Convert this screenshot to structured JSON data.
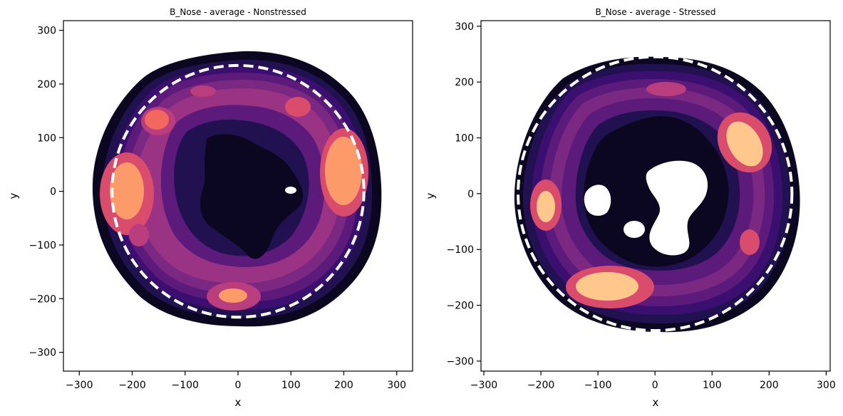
{
  "chart_data": [
    {
      "type": "heatmap",
      "subtype": "kde-contour",
      "title": "B_Nose - average - Nonstressed",
      "xlabel": "x",
      "ylabel": "y",
      "xlim": [
        -330,
        330
      ],
      "ylim": [
        -335,
        318
      ],
      "xticks": [
        -300,
        -200,
        -100,
        0,
        100,
        200,
        300
      ],
      "yticks": [
        -300,
        -200,
        -100,
        0,
        100,
        200,
        300
      ],
      "colormap": "magma",
      "reference_circle": {
        "cx": 0,
        "cy": 0,
        "r": 238,
        "style": "dashed",
        "color": "#ffffff"
      },
      "density_hotspots": [
        {
          "x": -205,
          "y": 0,
          "level": "high"
        },
        {
          "x": 200,
          "y": 30,
          "level": "high"
        },
        {
          "x": -145,
          "y": 130,
          "level": "medium-high"
        },
        {
          "x": 0,
          "y": -197,
          "level": "medium-high"
        },
        {
          "x": 100,
          "y": 155,
          "level": "medium"
        },
        {
          "x": -200,
          "y": -90,
          "level": "medium"
        }
      ],
      "low_density_region": {
        "x": 35,
        "y": 20,
        "level": "lowest"
      }
    },
    {
      "type": "heatmap",
      "subtype": "kde-contour",
      "title": "B_Nose - average - Stressed",
      "xlabel": "x",
      "ylabel": "y",
      "xlim": [
        -305,
        307
      ],
      "ylim": [
        -318,
        310
      ],
      "xticks": [
        -300,
        -200,
        -100,
        0,
        100,
        200,
        300
      ],
      "yticks": [
        -300,
        -200,
        -100,
        0,
        100,
        200,
        300
      ],
      "colormap": "magma",
      "reference_circle": {
        "cx": 0,
        "cy": 0,
        "r": 240,
        "style": "dashed",
        "color": "#ffffff"
      },
      "density_hotspots": [
        {
          "x": -80,
          "y": -170,
          "level": "high"
        },
        {
          "x": 155,
          "y": 95,
          "level": "high"
        },
        {
          "x": -197,
          "y": -25,
          "level": "high"
        },
        {
          "x": 165,
          "y": -88,
          "level": "medium"
        },
        {
          "x": 20,
          "y": 190,
          "level": "medium"
        }
      ],
      "empty_regions": [
        {
          "x": 50,
          "y": 20
        },
        {
          "x": -90,
          "y": -10
        },
        {
          "x": -35,
          "y": -65
        }
      ]
    }
  ],
  "colors": {
    "magma_1": "#0b0720",
    "magma_2": "#221150",
    "magma_3": "#3b0f70",
    "magma_4": "#5c1a7a",
    "magma_5": "#7a2882",
    "magma_6": "#9a3383",
    "magma_7": "#ba3d7d",
    "magma_8": "#d94c6c",
    "magma_9": "#f2675e",
    "magma_10": "#fd9a6a",
    "magma_11": "#fec88c"
  }
}
